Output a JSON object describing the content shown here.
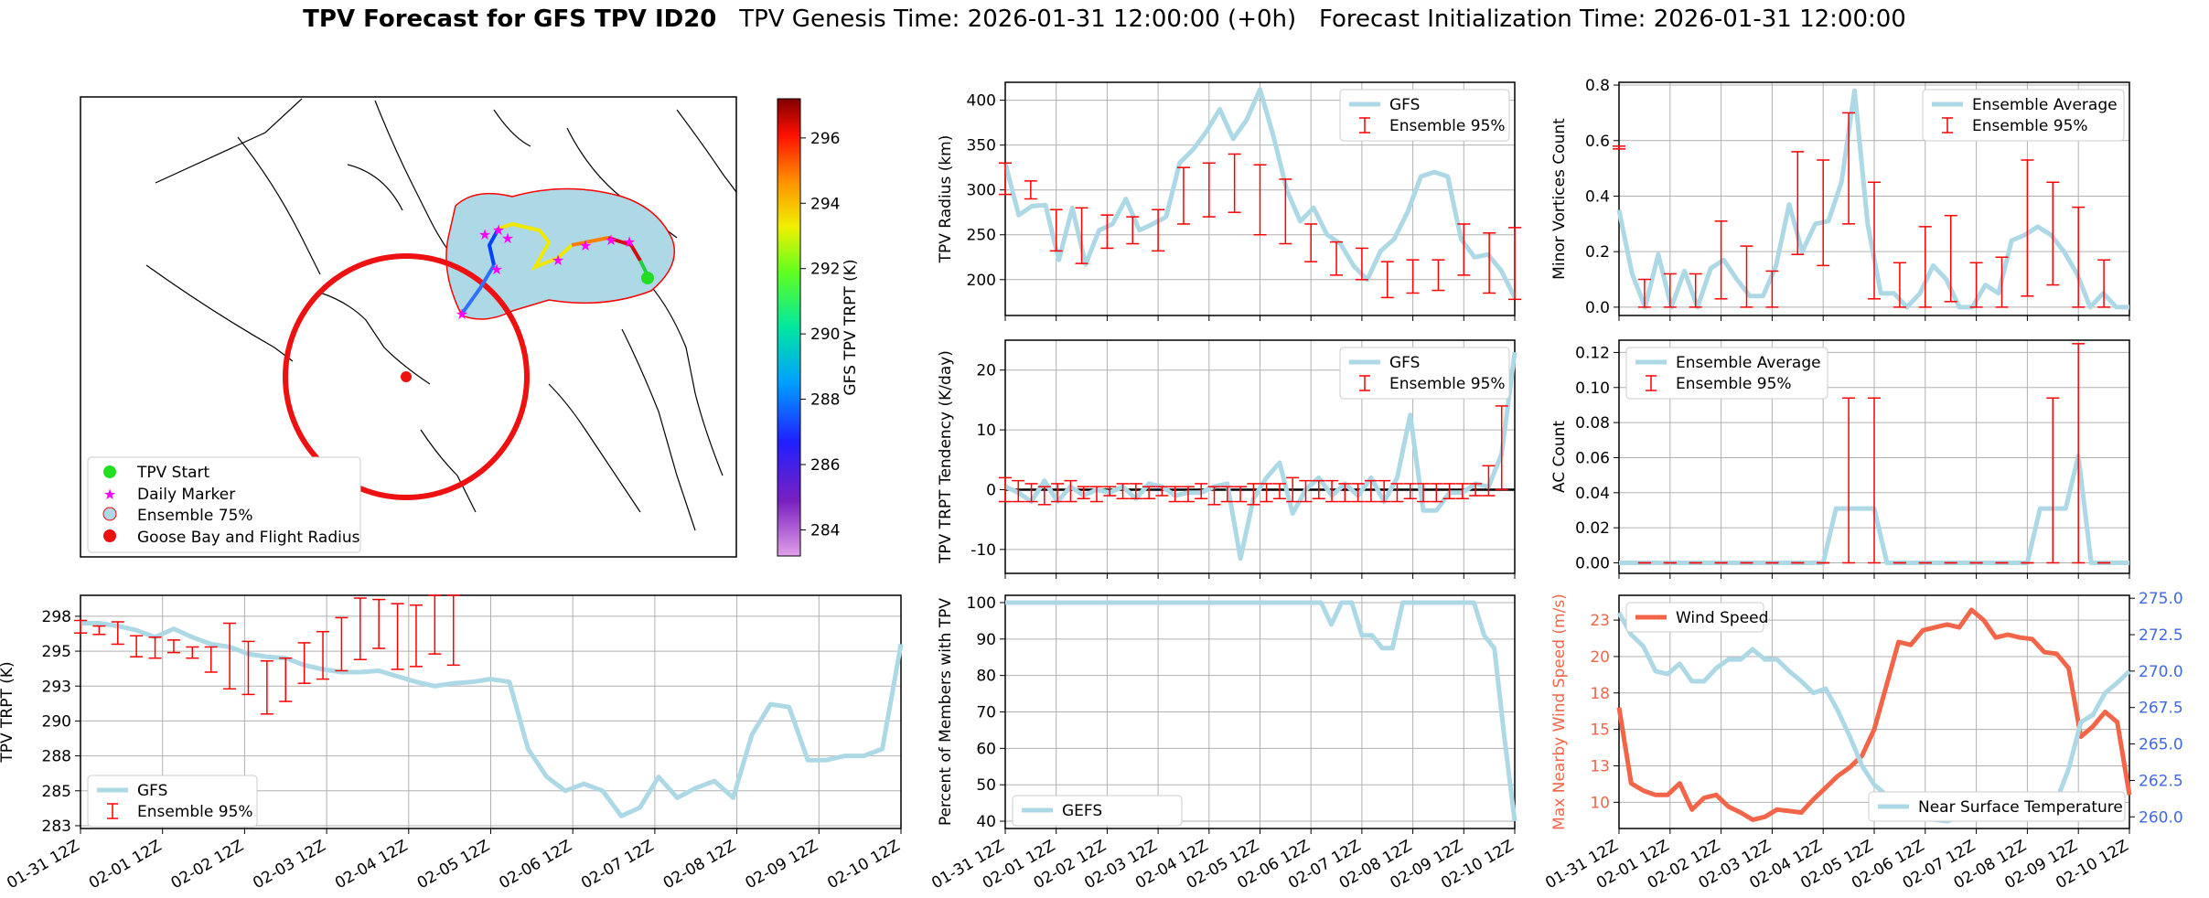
{
  "title": {
    "bold": "TPV Forecast for GFS TPV ID20",
    "genesis": "TPV Genesis Time: 2026-01-31 12:00:00 (+0h)",
    "init": "Forecast Initialization Time: 2026-01-31 12:00:00"
  },
  "colors": {
    "gfs": "#add8e6",
    "err": "#ff0000",
    "wind": "#f26548",
    "temp_axis": "#4169e1",
    "wind_axis": "#f26548"
  },
  "map": {
    "colorbar_label": "GFS TPV TRPT (K)",
    "colorbar_ticks": [
      284,
      286,
      288,
      290,
      292,
      294,
      296
    ],
    "colorbar_range": [
      283.2,
      297.2
    ],
    "legend": [
      "TPV Start",
      "Daily Marker",
      "Ensemble 75%",
      "Goose Bay and Flight Radius"
    ]
  },
  "date_labels": [
    "01-31 12Z",
    "02-01 12Z",
    "02-02 12Z",
    "02-03 12Z",
    "02-04 12Z",
    "02-05 12Z",
    "02-06 12Z",
    "02-07 12Z",
    "02-08 12Z",
    "02-09 12Z",
    "02-10 12Z"
  ],
  "chart_data": [
    {
      "id": "radius",
      "type": "line",
      "ylabel": "TPV Radius (km)",
      "ylim": [
        160,
        420
      ],
      "yticks": [
        200,
        250,
        300,
        350,
        400
      ],
      "legend": [
        "GFS",
        "Ensemble 95%"
      ],
      "series": [
        {
          "name": "GFS",
          "values": [
            330,
            272,
            282,
            283,
            222,
            280,
            217,
            255,
            262,
            290,
            255,
            262,
            270,
            330,
            345,
            365,
            390,
            357,
            378,
            412,
            360,
            300,
            265,
            280,
            250,
            240,
            215,
            200,
            232,
            245,
            275,
            315,
            320,
            315,
            245,
            225,
            228,
            210,
            180
          ]
        }
      ],
      "errors": [
        [
          0,
          330,
          295
        ],
        [
          2,
          310,
          290
        ],
        [
          4,
          278,
          232
        ],
        [
          6,
          280,
          218
        ],
        [
          8,
          272,
          235
        ],
        [
          10,
          270,
          240
        ],
        [
          12,
          278,
          232
        ],
        [
          14,
          325,
          262
        ],
        [
          16,
          330,
          270
        ],
        [
          18,
          340,
          275
        ],
        [
          20,
          328,
          250
        ],
        [
          22,
          312,
          240
        ],
        [
          24,
          262,
          220
        ],
        [
          26,
          242,
          205
        ],
        [
          28,
          235,
          200
        ],
        [
          30,
          220,
          180
        ],
        [
          32,
          222,
          185
        ],
        [
          34,
          222,
          188
        ],
        [
          36,
          262,
          205
        ],
        [
          38,
          252,
          185
        ],
        [
          40,
          258,
          178
        ]
      ]
    },
    {
      "id": "minor",
      "type": "line",
      "ylabel": "Minor Vortices Count",
      "ylim": [
        -0.03,
        0.81
      ],
      "yticks": [
        0.0,
        0.2,
        0.4,
        0.6,
        0.8
      ],
      "legend": [
        "Ensemble Average",
        "Ensemble 95%"
      ],
      "series": [
        {
          "name": "Ensemble Average",
          "values": [
            0.35,
            0.12,
            0.0,
            0.19,
            0.0,
            0.13,
            0.0,
            0.14,
            0.17,
            0.1,
            0.04,
            0.04,
            0.15,
            0.37,
            0.2,
            0.3,
            0.31,
            0.45,
            0.78,
            0.3,
            0.05,
            0.05,
            0.0,
            0.05,
            0.15,
            0.1,
            0.0,
            0.0,
            0.08,
            0.05,
            0.24,
            0.26,
            0.29,
            0.26,
            0.2,
            0.12,
            0.0,
            0.05,
            0.0,
            0.0
          ]
        }
      ],
      "errors": [
        [
          0,
          0.58,
          0.57
        ],
        [
          2,
          0.1,
          0.0
        ],
        [
          4,
          0.12,
          0.0
        ],
        [
          6,
          0.12,
          0.0
        ],
        [
          8,
          0.31,
          0.03
        ],
        [
          10,
          0.22,
          0.0
        ],
        [
          12,
          0.13,
          0.0
        ],
        [
          14,
          0.56,
          0.19
        ],
        [
          16,
          0.53,
          0.15
        ],
        [
          18,
          0.7,
          0.3
        ],
        [
          20,
          0.45,
          0.03
        ],
        [
          22,
          0.16,
          0.0
        ],
        [
          24,
          0.29,
          0.0
        ],
        [
          26,
          0.33,
          0.02
        ],
        [
          28,
          0.16,
          0.0
        ],
        [
          30,
          0.18,
          0.0
        ],
        [
          32,
          0.53,
          0.04
        ],
        [
          34,
          0.45,
          0.08
        ],
        [
          36,
          0.36,
          0.0
        ],
        [
          38,
          0.17,
          0.0
        ]
      ]
    },
    {
      "id": "tend",
      "type": "line",
      "ylabel": "TPV TRPT Tendency (K/day)",
      "ylim": [
        -14,
        25
      ],
      "yticks": [
        -10,
        0,
        10,
        20
      ],
      "legend": [
        "GFS",
        "Ensemble 95%"
      ],
      "series": [
        {
          "name": "GFS",
          "values": [
            0.5,
            -0.5,
            -2,
            1.5,
            -2,
            0.5,
            -1,
            0,
            -0.5,
            0.5,
            -1.5,
            1,
            0.5,
            -1,
            -0.5,
            -0.5,
            0.5,
            1,
            -11.5,
            -1.5,
            2,
            4.5,
            -4,
            0,
            2,
            -1,
            1,
            -1,
            2,
            -2,
            2,
            12.5,
            -3.5,
            -3.5,
            -0.5,
            -0.5,
            1,
            0.5,
            6,
            23
          ]
        }
      ],
      "errors": [
        [
          0,
          2,
          -2
        ],
        [
          1,
          1.5,
          -2
        ],
        [
          2,
          1,
          -2
        ],
        [
          3,
          0.5,
          -2.5
        ],
        [
          4,
          1,
          -2
        ],
        [
          5,
          1.5,
          -2
        ],
        [
          6,
          0.5,
          -1.5
        ],
        [
          7,
          0.5,
          -2
        ],
        [
          8,
          0.5,
          -1
        ],
        [
          9,
          1,
          -1.5
        ],
        [
          10,
          1,
          -1.5
        ],
        [
          11,
          0.5,
          -1.5
        ],
        [
          12,
          0.5,
          -1
        ],
        [
          13,
          0.5,
          -2
        ],
        [
          14,
          0.5,
          -2
        ],
        [
          15,
          1,
          -1.5
        ],
        [
          16,
          0.5,
          -2.5
        ],
        [
          17,
          0.5,
          -2
        ],
        [
          18,
          0.5,
          -2
        ],
        [
          19,
          1,
          -2.5
        ],
        [
          20,
          1,
          -2
        ],
        [
          21,
          1,
          -1.5
        ],
        [
          22,
          2,
          -2
        ],
        [
          23,
          1.5,
          -2
        ],
        [
          24,
          1.5,
          -1.5
        ],
        [
          25,
          1.5,
          -2
        ],
        [
          26,
          1,
          -2
        ],
        [
          27,
          1,
          -2
        ],
        [
          28,
          1.5,
          -2
        ],
        [
          29,
          1.5,
          -2
        ],
        [
          30,
          1,
          -2
        ],
        [
          31,
          1,
          -1.5
        ],
        [
          32,
          1,
          -2
        ],
        [
          33,
          1,
          -2
        ],
        [
          34,
          1,
          -1.5
        ],
        [
          35,
          1,
          -1.5
        ],
        [
          36,
          1,
          -1
        ],
        [
          37,
          4,
          -1
        ],
        [
          38,
          14,
          0
        ]
      ]
    },
    {
      "id": "ac",
      "type": "line",
      "ylabel": "AC Count",
      "ylim": [
        -0.006,
        0.127
      ],
      "yticks": [
        0.0,
        0.02,
        0.04,
        0.06,
        0.08,
        0.1,
        0.12
      ],
      "legend": [
        "Ensemble Average",
        "Ensemble 95%"
      ],
      "series": [
        {
          "name": "Ensemble Average",
          "values": [
            0,
            0,
            0,
            0,
            0,
            0,
            0,
            0,
            0,
            0,
            0,
            0,
            0,
            0,
            0,
            0,
            0,
            0.031,
            0.031,
            0.031,
            0.031,
            0,
            0,
            0,
            0,
            0,
            0,
            0,
            0,
            0,
            0,
            0,
            0,
            0.031,
            0.031,
            0.031,
            0.061,
            0,
            0,
            0,
            0
          ]
        }
      ],
      "errors": [
        [
          2,
          0,
          0
        ],
        [
          4,
          0,
          0
        ],
        [
          6,
          0,
          0
        ],
        [
          8,
          0,
          0
        ],
        [
          10,
          0,
          0
        ],
        [
          12,
          0,
          0
        ],
        [
          14,
          0,
          0
        ],
        [
          16,
          0,
          0
        ],
        [
          18,
          0.094,
          0
        ],
        [
          20,
          0.094,
          0
        ],
        [
          22,
          0,
          0
        ],
        [
          24,
          0,
          0
        ],
        [
          26,
          0,
          0
        ],
        [
          28,
          0,
          0
        ],
        [
          30,
          0,
          0
        ],
        [
          32,
          0,
          0
        ],
        [
          34,
          0.094,
          0
        ],
        [
          36,
          0.125,
          0
        ],
        [
          38,
          0,
          0
        ]
      ]
    },
    {
      "id": "trpt",
      "type": "line",
      "ylabel": "TPV TRPT (K)",
      "ylim": [
        282.3,
        299
      ],
      "yticks": [
        282.5,
        285.0,
        287.5,
        290.0,
        292.5,
        295.0,
        297.5
      ],
      "legend": [
        "GFS",
        "Ensemble 95%"
      ],
      "series": [
        {
          "name": "GFS",
          "values": [
            297.0,
            297.0,
            296.8,
            296.5,
            296.0,
            296.6,
            296.0,
            295.5,
            295.3,
            294.8,
            294.6,
            294.5,
            294.0,
            293.7,
            293.5,
            293.5,
            293.6,
            293.2,
            292.8,
            292.5,
            292.7,
            292.8,
            293.0,
            292.8,
            288.0,
            286.0,
            285.0,
            285.5,
            285.0,
            283.2,
            283.8,
            286.0,
            284.5,
            285.2,
            285.7,
            284.5,
            289.0,
            291.2,
            291.0,
            287.2,
            287.2,
            287.5,
            287.5,
            288.0,
            295.5
          ]
        }
      ],
      "errors": [
        [
          0,
          297.2,
          296.3
        ],
        [
          1,
          296.8,
          296.2
        ],
        [
          2,
          297.1,
          295.5
        ],
        [
          3,
          296.1,
          294.6
        ],
        [
          4,
          296.0,
          294.5
        ],
        [
          5,
          295.8,
          294.9
        ],
        [
          6,
          295.3,
          294.5
        ],
        [
          7,
          295.3,
          293.5
        ],
        [
          8,
          297.0,
          292.3
        ],
        [
          9,
          295.7,
          291.9
        ],
        [
          10,
          294.3,
          290.5
        ],
        [
          11,
          294.5,
          291.4
        ],
        [
          12,
          295.6,
          292.7
        ],
        [
          13,
          296.4,
          293.0
        ],
        [
          14,
          297.4,
          293.6
        ],
        [
          15,
          298.8,
          294.4
        ],
        [
          16,
          298.7,
          295.2
        ],
        [
          17,
          298.4,
          293.7
        ],
        [
          18,
          298.3,
          293.9
        ],
        [
          19,
          299.0,
          294.8
        ],
        [
          20,
          299.0,
          294.0
        ]
      ]
    },
    {
      "id": "percent",
      "type": "line",
      "ylabel": "Percent of Members with TPV",
      "ylim": [
        38,
        102
      ],
      "yticks": [
        40,
        50,
        60,
        70,
        80,
        90,
        100
      ],
      "legend": [
        "GEFS"
      ],
      "series": [
        {
          "name": "GEFS",
          "values": [
            100,
            100,
            100,
            100,
            100,
            100,
            100,
            100,
            100,
            100,
            100,
            100,
            100,
            100,
            100,
            100,
            100,
            100,
            100,
            100,
            100,
            100,
            100,
            100,
            100,
            100,
            100,
            100,
            100,
            100,
            100,
            100,
            94,
            100,
            100,
            91,
            91,
            87.5,
            87.5,
            100,
            100,
            100,
            100,
            100,
            100,
            100,
            100,
            91,
            87.5,
            62.5,
            40
          ]
        }
      ]
    },
    {
      "id": "wind",
      "type": "line",
      "ylabel": "Max Nearby Wind Speed (m/s)",
      "ylabel2": "Near Surface Temperature (K)",
      "ylim": [
        8.2,
        24.2
      ],
      "ylim2": [
        259.2,
        275.2
      ],
      "yticks": [
        10.0,
        12.5,
        15.0,
        17.5,
        20.0,
        22.5
      ],
      "yticks2": [
        260.0,
        262.5,
        265.0,
        267.5,
        270.0,
        272.5,
        275.0
      ],
      "legend": [
        "Wind Speed",
        "Near Surface Temperature"
      ],
      "series": [
        {
          "name": "Wind Speed",
          "values": [
            16.5,
            11.3,
            10.8,
            10.5,
            10.5,
            11.3,
            9.5,
            10.3,
            10.5,
            9.7,
            9.3,
            8.8,
            9.0,
            9.5,
            9.4,
            9.3,
            10.2,
            11.0,
            11.8,
            12.4,
            13.2,
            15.0,
            18.0,
            21.0,
            20.8,
            21.8,
            22.0,
            22.2,
            22.0,
            23.2,
            22.5,
            21.3,
            21.5,
            21.3,
            21.2,
            20.3,
            20.2,
            19.2,
            14.5,
            15.2,
            16.2,
            15.5,
            10.5
          ]
        },
        {
          "name": "Near Surface Temperature",
          "values": [
            274.0,
            272.5,
            271.7,
            270.0,
            269.8,
            270.5,
            269.3,
            269.3,
            270.2,
            270.8,
            270.8,
            271.5,
            270.8,
            270.8,
            270.0,
            269.3,
            268.5,
            268.8,
            267.3,
            265.5,
            263.5,
            262.2,
            261.5,
            261.0,
            260.5,
            260.1,
            259.8,
            259.7,
            260.0,
            260.5,
            260.7,
            260.5,
            261.1,
            261.1,
            261.2,
            261.0,
            261.1,
            263.3,
            266.5,
            267.0,
            268.5,
            269.2,
            270.0
          ]
        }
      ]
    }
  ]
}
